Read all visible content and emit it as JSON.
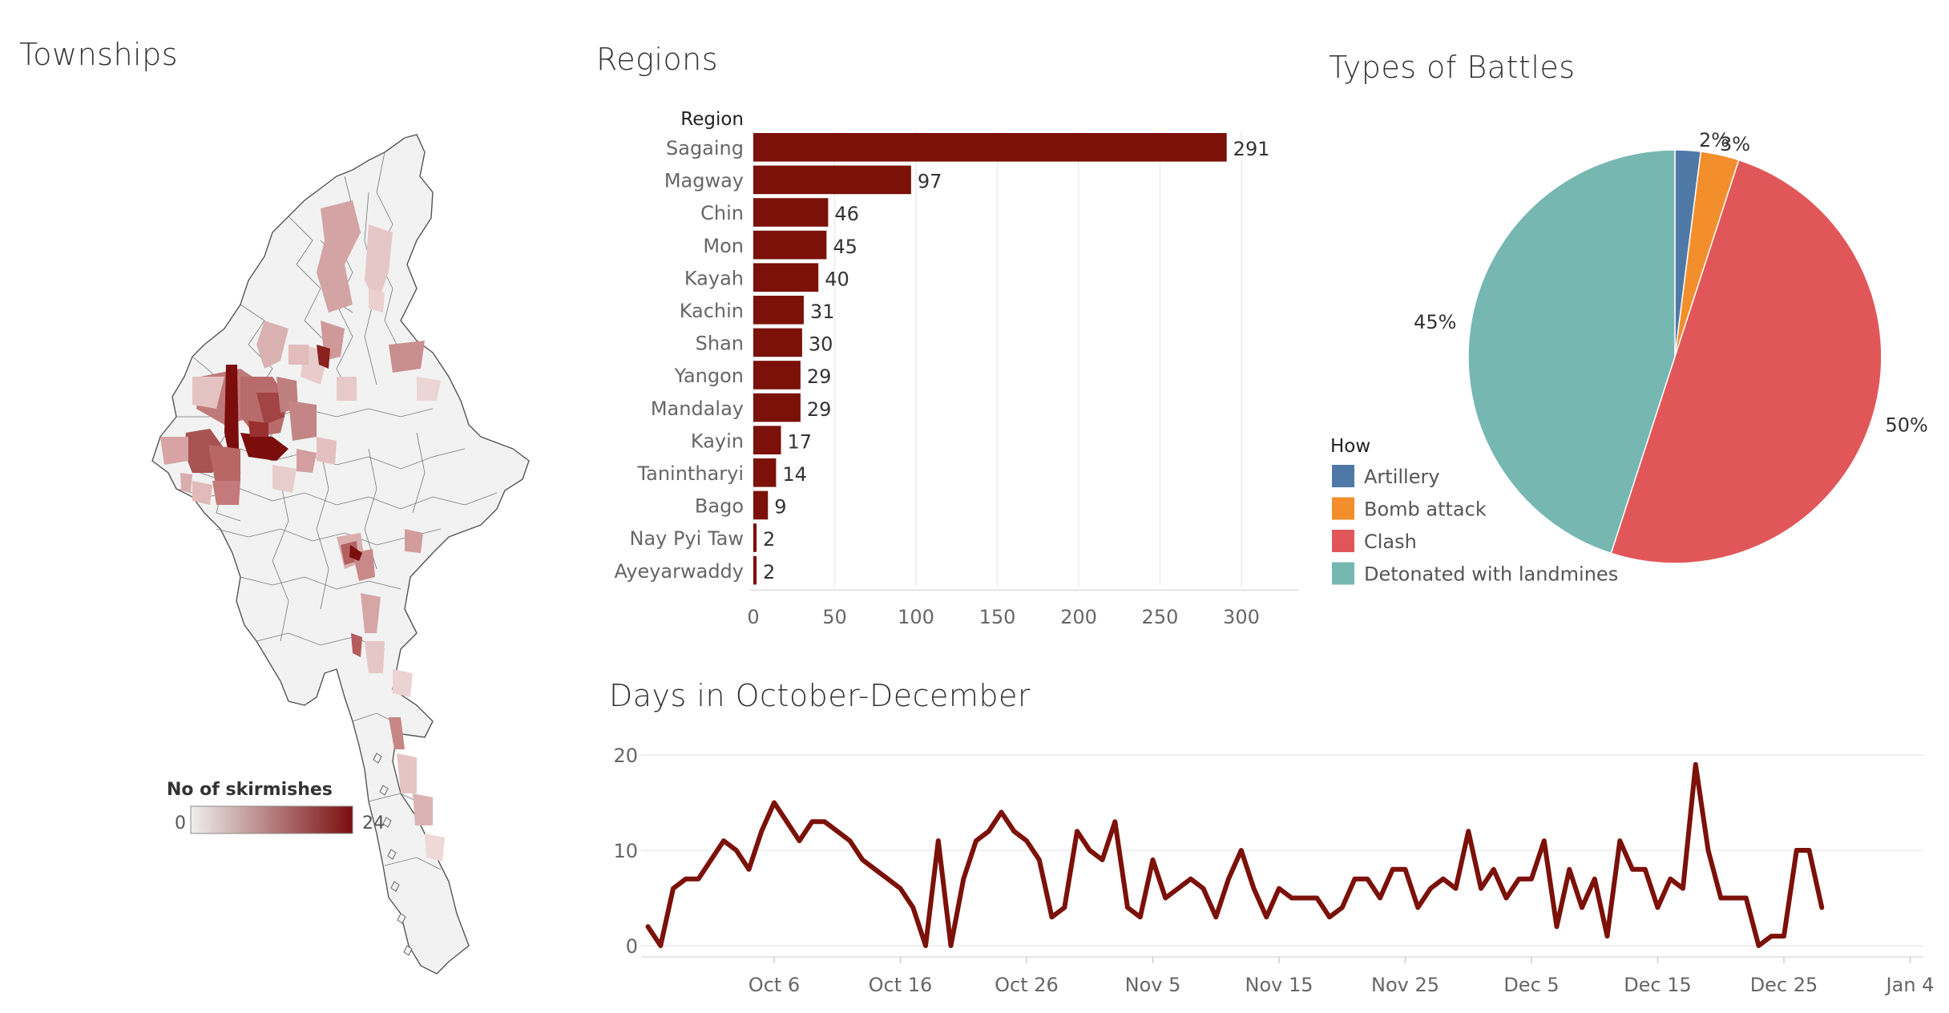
{
  "titles": {
    "townships": "Townships",
    "regions": "Regions",
    "battles": "Types of Battles",
    "days": "Days in October-December"
  },
  "map_legend": {
    "title": "No of skirmishes",
    "min": "0",
    "max": "24",
    "color_low": "#efefef",
    "color_high": "#7b0d0d"
  },
  "colors": {
    "bar": "#7b1109",
    "line": "#7b1109",
    "artillery": "#4e79a7",
    "bomb": "#f28e2b",
    "clash": "#e15759",
    "landmine": "#76b7b2"
  },
  "chart_data": [
    {
      "type": "bar",
      "orientation": "horizontal",
      "ylabel": "Region",
      "categories": [
        "Sagaing",
        "Magway",
        "Chin",
        "Mon",
        "Kayah",
        "Kachin",
        "Shan",
        "Yangon",
        "Mandalay",
        "Kayin",
        "Tanintharyi",
        "Bago",
        "Nay Pyi Taw",
        "Ayeyarwaddy"
      ],
      "values": [
        291,
        97,
        46,
        45,
        40,
        31,
        30,
        29,
        29,
        17,
        14,
        9,
        2,
        2
      ],
      "xticks": [
        "0",
        "50",
        "100",
        "150",
        "200",
        "250",
        "300"
      ],
      "xlim": [
        0,
        335
      ],
      "grid": true
    },
    {
      "type": "pie",
      "legend_title": "How",
      "labels": [
        "Artillery",
        "Bomb attack",
        "Clash",
        "Detonated with landmines"
      ],
      "values": [
        2,
        3,
        50,
        45
      ],
      "value_labels": [
        "2%",
        "3%",
        "50%",
        "45%"
      ],
      "legend_position": "left"
    },
    {
      "type": "line",
      "x_start": "Oct 1",
      "x_end": "Dec 31",
      "xticks": [
        "Oct 6",
        "Oct 16",
        "Oct 26",
        "Nov 5",
        "Nov 15",
        "Nov 25",
        "Dec 5",
        "Dec 15",
        "Dec 25",
        "Jan 4"
      ],
      "yticks": [
        "0",
        "10",
        "20"
      ],
      "ylim": [
        0,
        20
      ],
      "points": [
        [
          "Sep 26",
          2
        ],
        [
          "Sep 27",
          0
        ],
        [
          "Sep 28",
          6
        ],
        [
          "Sep 29",
          7
        ],
        [
          "Sep 30",
          7
        ],
        [
          "Oct 1",
          9
        ],
        [
          "Oct 2",
          11
        ],
        [
          "Oct 3",
          10
        ],
        [
          "Oct 4",
          8
        ],
        [
          "Oct 5",
          12
        ],
        [
          "Oct 6",
          15
        ],
        [
          "Oct 7",
          13
        ],
        [
          "Oct 8",
          11
        ],
        [
          "Oct 9",
          13
        ],
        [
          "Oct 10",
          13
        ],
        [
          "Oct 11",
          12
        ],
        [
          "Oct 12",
          11
        ],
        [
          "Oct 13",
          9
        ],
        [
          "Oct 14",
          8
        ],
        [
          "Oct 15",
          7
        ],
        [
          "Oct 16",
          6
        ],
        [
          "Oct 17",
          4
        ],
        [
          "Oct 18",
          0
        ],
        [
          "Oct 19",
          11
        ],
        [
          "Oct 20",
          0
        ],
        [
          "Oct 21",
          7
        ],
        [
          "Oct 22",
          11
        ],
        [
          "Oct 23",
          12
        ],
        [
          "Oct 24",
          14
        ],
        [
          "Oct 25",
          12
        ],
        [
          "Oct 26",
          11
        ],
        [
          "Oct 27",
          9
        ],
        [
          "Oct 28",
          3
        ],
        [
          "Oct 29",
          4
        ],
        [
          "Oct 30",
          12
        ],
        [
          "Oct 31",
          10
        ],
        [
          "Nov 1",
          9
        ],
        [
          "Nov 2",
          13
        ],
        [
          "Nov 3",
          4
        ],
        [
          "Nov 4",
          3
        ],
        [
          "Nov 5",
          9
        ],
        [
          "Nov 6",
          5
        ],
        [
          "Nov 7",
          6
        ],
        [
          "Nov 8",
          7
        ],
        [
          "Nov 9",
          6
        ],
        [
          "Nov 10",
          3
        ],
        [
          "Nov 11",
          7
        ],
        [
          "Nov 12",
          10
        ],
        [
          "Nov 13",
          6
        ],
        [
          "Nov 14",
          3
        ],
        [
          "Nov 15",
          6
        ],
        [
          "Nov 16",
          5
        ],
        [
          "Nov 17",
          5
        ],
        [
          "Nov 18",
          5
        ],
        [
          "Nov 19",
          3
        ],
        [
          "Nov 20",
          4
        ],
        [
          "Nov 21",
          7
        ],
        [
          "Nov 22",
          7
        ],
        [
          "Nov 23",
          5
        ],
        [
          "Nov 24",
          8
        ],
        [
          "Nov 25",
          8
        ],
        [
          "Nov 26",
          4
        ],
        [
          "Nov 27",
          6
        ],
        [
          "Nov 28",
          7
        ],
        [
          "Nov 29",
          6
        ],
        [
          "Nov 30",
          12
        ],
        [
          "Dec 1",
          6
        ],
        [
          "Dec 2",
          8
        ],
        [
          "Dec 3",
          5
        ],
        [
          "Dec 4",
          7
        ],
        [
          "Dec 5",
          7
        ],
        [
          "Dec 6",
          11
        ],
        [
          "Dec 7",
          2
        ],
        [
          "Dec 8",
          8
        ],
        [
          "Dec 9",
          4
        ],
        [
          "Dec 10",
          7
        ],
        [
          "Dec 11",
          1
        ],
        [
          "Dec 12",
          11
        ],
        [
          "Dec 13",
          8
        ],
        [
          "Dec 14",
          8
        ],
        [
          "Dec 15",
          4
        ],
        [
          "Dec 16",
          7
        ],
        [
          "Dec 17",
          6
        ],
        [
          "Dec 18",
          19
        ],
        [
          "Dec 19",
          10
        ],
        [
          "Dec 20",
          5
        ],
        [
          "Dec 21",
          5
        ],
        [
          "Dec 22",
          5
        ],
        [
          "Dec 23",
          0
        ],
        [
          "Dec 24",
          1
        ],
        [
          "Dec 25",
          1
        ],
        [
          "Dec 26",
          10
        ],
        [
          "Dec 27",
          10
        ],
        [
          "Dec 28",
          4
        ]
      ]
    }
  ]
}
